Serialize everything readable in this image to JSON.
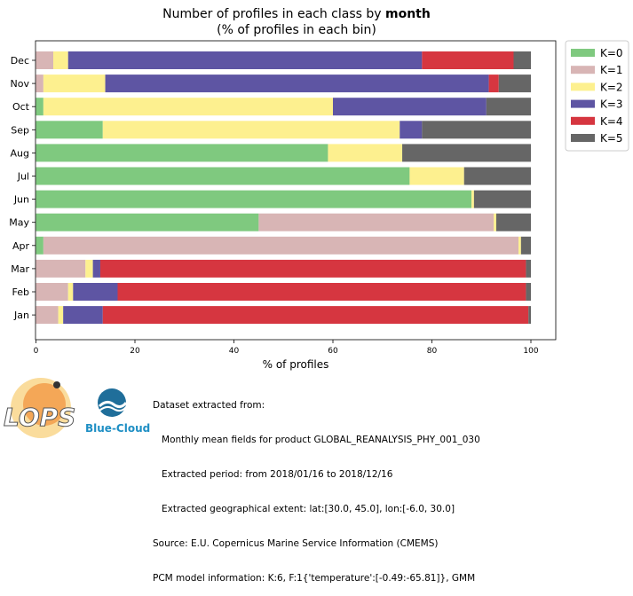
{
  "chart_data": {
    "type": "bar",
    "orientation": "horizontal",
    "stacked": true,
    "title_line1_prefix": "Number of profiles in each class by ",
    "title_line1_bold": "month",
    "title_line2": "(% of profiles in each bin)",
    "xlabel": "% of profiles",
    "ylabel": "",
    "xlim": [
      0,
      100
    ],
    "xticks": [
      "0",
      "20",
      "40",
      "60",
      "80",
      "100"
    ],
    "grid": false,
    "legend_position": "top-right",
    "categories": [
      "Jan",
      "Feb",
      "Mar",
      "Apr",
      "May",
      "Jun",
      "Jul",
      "Aug",
      "Sep",
      "Oct",
      "Nov",
      "Dec"
    ],
    "series": [
      {
        "name": "K=0",
        "color": "#7fc97f",
        "values": [
          0,
          0,
          0,
          1.5,
          45,
          88,
          75.5,
          59,
          13.5,
          1.5,
          0,
          0
        ]
      },
      {
        "name": "K=1",
        "color": "#d8b5b5",
        "values": [
          4.5,
          6.5,
          10,
          96,
          47.5,
          0,
          0,
          0,
          0,
          0,
          1.5,
          3.5
        ]
      },
      {
        "name": "K=2",
        "color": "#fdf08f",
        "values": [
          1,
          1,
          1.5,
          0.5,
          0.5,
          0.5,
          11,
          15,
          60,
          58.5,
          12.5,
          3
        ]
      },
      {
        "name": "K=3",
        "color": "#5e55a3",
        "values": [
          8,
          9,
          1.5,
          0,
          0,
          0,
          0,
          0,
          4.5,
          31,
          77.5,
          71.5
        ]
      },
      {
        "name": "K=4",
        "color": "#d63640",
        "values": [
          86,
          82.5,
          86,
          0,
          0,
          0,
          0,
          0,
          0,
          0,
          2,
          18.5
        ]
      },
      {
        "name": "K=5",
        "color": "#666666",
        "values": [
          0.5,
          1,
          1,
          2,
          7,
          11.5,
          13.5,
          26,
          22,
          9,
          6.5,
          3.5
        ]
      }
    ]
  },
  "footer": {
    "lines": [
      "Dataset extracted from:",
      "   Monthly mean fields for product GLOBAL_REANALYSIS_PHY_001_030",
      "   Extracted period: from 2018/01/16 to 2018/12/16",
      "   Extracted geographical extent: lat:[30.0, 45.0], lon:[-6.0, 30.0]",
      "Source: E.U. Copernicus Marine Service Information (CMEMS)",
      "PCM model information: K:6, F:1{'temperature':[-0.49:-65.81]}, GMM"
    ]
  },
  "logos": {
    "lops_text": "LOPS",
    "bluecloud_text": "Blue-Cloud"
  }
}
